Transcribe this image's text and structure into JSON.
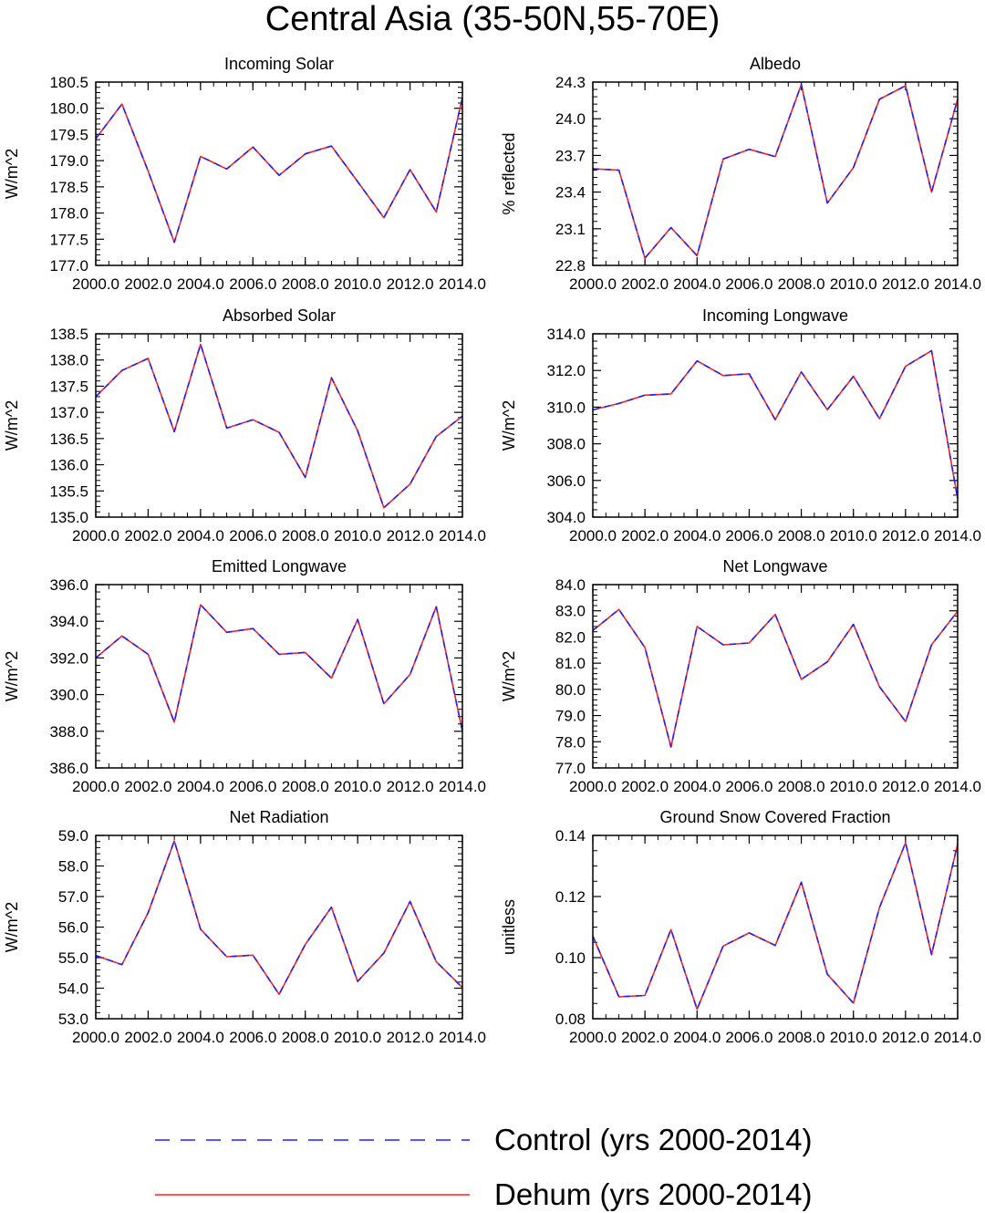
{
  "title": "Central Asia (35-50N,55-70E)",
  "colors": {
    "control": "#2020ff",
    "dehum": "#ff2020"
  },
  "legend": {
    "control_label": "Control (yrs 2000-2014)",
    "dehum_label": "Dehum (yrs 2000-2014)"
  },
  "chart_data": [
    {
      "type": "line",
      "title": "Incoming Solar",
      "ylabel": "W/m^2",
      "xlim": [
        2000,
        2014
      ],
      "ylim": [
        177.0,
        180.5
      ],
      "xticks": [
        "2000.0",
        "2002.0",
        "2004.0",
        "2006.0",
        "2008.0",
        "2010.0",
        "2012.0",
        "2014.0"
      ],
      "yticks": [
        "177.0",
        "177.5",
        "178.0",
        "178.5",
        "179.0",
        "179.5",
        "180.0",
        "180.5"
      ],
      "x": [
        2000,
        2001,
        2002,
        2003,
        2004,
        2005,
        2006,
        2007,
        2008,
        2009,
        2010,
        2011,
        2012,
        2013,
        2014
      ],
      "series": [
        {
          "name": "Control (yrs 2000-2014)",
          "values": [
            179.42,
            180.08,
            178.8,
            177.44,
            179.08,
            178.84,
            179.26,
            178.72,
            179.13,
            179.28,
            178.6,
            177.91,
            178.83,
            178.02,
            180.2
          ]
        },
        {
          "name": "Dehum (yrs 2000-2014)",
          "values": [
            179.42,
            180.08,
            178.8,
            177.44,
            179.08,
            178.84,
            179.26,
            178.72,
            179.13,
            179.28,
            178.6,
            177.91,
            178.83,
            178.02,
            180.2
          ]
        }
      ]
    },
    {
      "type": "line",
      "title": "Albedo",
      "ylabel": "% reflected",
      "xlim": [
        2000,
        2014
      ],
      "ylim": [
        22.8,
        24.3
      ],
      "xticks": [
        "2000.0",
        "2002.0",
        "2004.0",
        "2006.0",
        "2008.0",
        "2010.0",
        "2012.0",
        "2014.0"
      ],
      "yticks": [
        "22.8",
        "23.1",
        "23.4",
        "23.7",
        "24.0",
        "24.3"
      ],
      "x": [
        2000,
        2001,
        2002,
        2003,
        2004,
        2005,
        2006,
        2007,
        2008,
        2009,
        2010,
        2011,
        2012,
        2013,
        2014
      ],
      "series": [
        {
          "name": "Control (yrs 2000-2014)",
          "values": [
            23.59,
            23.58,
            22.86,
            23.11,
            22.88,
            23.67,
            23.75,
            23.69,
            24.28,
            23.31,
            23.6,
            24.16,
            24.27,
            23.4,
            24.16
          ]
        },
        {
          "name": "Dehum (yrs 2000-2014)",
          "values": [
            23.59,
            23.58,
            22.86,
            23.11,
            22.88,
            23.67,
            23.75,
            23.69,
            24.28,
            23.31,
            23.6,
            24.16,
            24.27,
            23.4,
            24.16
          ]
        }
      ]
    },
    {
      "type": "line",
      "title": "Absorbed Solar",
      "ylabel": "W/m^2",
      "xlim": [
        2000,
        2014
      ],
      "ylim": [
        135.0,
        138.5
      ],
      "xticks": [
        "2000.0",
        "2002.0",
        "2004.0",
        "2006.0",
        "2008.0",
        "2010.0",
        "2012.0",
        "2014.0"
      ],
      "yticks": [
        "135.0",
        "135.5",
        "136.0",
        "136.5",
        "137.0",
        "137.5",
        "138.0",
        "138.5"
      ],
      "x": [
        2000,
        2001,
        2002,
        2003,
        2004,
        2005,
        2006,
        2007,
        2008,
        2009,
        2010,
        2011,
        2012,
        2013,
        2014
      ],
      "series": [
        {
          "name": "Control (yrs 2000-2014)",
          "values": [
            137.3,
            137.8,
            138.03,
            136.63,
            138.3,
            136.7,
            136.86,
            136.62,
            135.76,
            137.66,
            136.65,
            135.18,
            135.63,
            136.54,
            136.93
          ]
        },
        {
          "name": "Dehum (yrs 2000-2014)",
          "values": [
            137.3,
            137.8,
            138.03,
            136.63,
            138.3,
            136.7,
            136.86,
            136.62,
            135.76,
            137.66,
            136.65,
            135.18,
            135.63,
            136.54,
            136.93
          ]
        }
      ]
    },
    {
      "type": "line",
      "title": "Incoming Longwave",
      "ylabel": "W/m^2",
      "xlim": [
        2000,
        2014
      ],
      "ylim": [
        304.0,
        314.0
      ],
      "xticks": [
        "2000.0",
        "2002.0",
        "2004.0",
        "2006.0",
        "2008.0",
        "2010.0",
        "2012.0",
        "2014.0"
      ],
      "yticks": [
        "304.0",
        "306.0",
        "308.0",
        "310.0",
        "312.0",
        "314.0"
      ],
      "x": [
        2000,
        2001,
        2002,
        2003,
        2004,
        2005,
        2006,
        2007,
        2008,
        2009,
        2010,
        2011,
        2012,
        2013,
        2014
      ],
      "series": [
        {
          "name": "Control (yrs 2000-2014)",
          "values": [
            309.85,
            310.2,
            310.65,
            310.72,
            312.52,
            311.72,
            311.82,
            309.32,
            311.92,
            309.86,
            311.68,
            309.37,
            312.23,
            313.08,
            305.0
          ]
        },
        {
          "name": "Dehum (yrs 2000-2014)",
          "values": [
            309.85,
            310.2,
            310.65,
            310.72,
            312.52,
            311.72,
            311.82,
            309.32,
            311.92,
            309.86,
            311.68,
            309.37,
            312.23,
            313.08,
            305.0
          ]
        }
      ]
    },
    {
      "type": "line",
      "title": "Emitted Longwave",
      "ylabel": "W/m^2",
      "xlim": [
        2000,
        2014
      ],
      "ylim": [
        386.0,
        396.0
      ],
      "xticks": [
        "2000.0",
        "2002.0",
        "2004.0",
        "2006.0",
        "2008.0",
        "2010.0",
        "2012.0",
        "2014.0"
      ],
      "yticks": [
        "386.0",
        "388.0",
        "390.0",
        "392.0",
        "394.0",
        "396.0"
      ],
      "x": [
        2000,
        2001,
        2002,
        2003,
        2004,
        2005,
        2006,
        2007,
        2008,
        2009,
        2010,
        2011,
        2012,
        2013,
        2014
      ],
      "series": [
        {
          "name": "Control (yrs 2000-2014)",
          "values": [
            392.0,
            393.2,
            392.2,
            388.5,
            394.9,
            393.4,
            393.6,
            392.2,
            392.3,
            390.9,
            394.1,
            389.5,
            391.1,
            394.8,
            388.0
          ]
        },
        {
          "name": "Dehum (yrs 2000-2014)",
          "values": [
            392.0,
            393.2,
            392.2,
            388.5,
            394.9,
            393.4,
            393.6,
            392.2,
            392.3,
            390.9,
            394.1,
            389.5,
            391.1,
            394.8,
            388.0
          ]
        }
      ]
    },
    {
      "type": "line",
      "title": "Net Longwave",
      "ylabel": "W/m^2",
      "xlim": [
        2000,
        2014
      ],
      "ylim": [
        77.0,
        84.0
      ],
      "xticks": [
        "2000.0",
        "2002.0",
        "2004.0",
        "2006.0",
        "2008.0",
        "2010.0",
        "2012.0",
        "2014.0"
      ],
      "yticks": [
        "77.0",
        "78.0",
        "79.0",
        "80.0",
        "81.0",
        "82.0",
        "83.0",
        "84.0"
      ],
      "x": [
        2000,
        2001,
        2002,
        2003,
        2004,
        2005,
        2006,
        2007,
        2008,
        2009,
        2010,
        2011,
        2012,
        2013,
        2014
      ],
      "series": [
        {
          "name": "Control (yrs 2000-2014)",
          "values": [
            82.25,
            83.05,
            81.6,
            77.8,
            82.4,
            81.7,
            81.77,
            82.86,
            80.38,
            81.05,
            82.48,
            80.1,
            78.77,
            81.7,
            82.98
          ]
        },
        {
          "name": "Dehum (yrs 2000-2014)",
          "values": [
            82.25,
            83.05,
            81.6,
            77.8,
            82.4,
            81.7,
            81.77,
            82.86,
            80.38,
            81.05,
            82.48,
            80.1,
            78.77,
            81.7,
            82.98
          ]
        }
      ]
    },
    {
      "type": "line",
      "title": "Net Radiation",
      "ylabel": "W/m^2",
      "xlim": [
        2000,
        2014
      ],
      "ylim": [
        53.0,
        59.0
      ],
      "xticks": [
        "2000.0",
        "2002.0",
        "2004.0",
        "2006.0",
        "2008.0",
        "2010.0",
        "2012.0",
        "2014.0"
      ],
      "yticks": [
        "53.0",
        "54.0",
        "55.0",
        "56.0",
        "57.0",
        "58.0",
        "59.0"
      ],
      "x": [
        2000,
        2001,
        2002,
        2003,
        2004,
        2005,
        2006,
        2007,
        2008,
        2009,
        2010,
        2011,
        2012,
        2013,
        2014
      ],
      "series": [
        {
          "name": "Control (yrs 2000-2014)",
          "values": [
            55.07,
            54.77,
            56.47,
            58.82,
            55.93,
            55.03,
            55.08,
            53.8,
            55.43,
            56.65,
            54.22,
            55.15,
            56.84,
            54.87,
            54.02
          ]
        },
        {
          "name": "Dehum (yrs 2000-2014)",
          "values": [
            55.07,
            54.77,
            56.47,
            58.82,
            55.93,
            55.03,
            55.08,
            53.8,
            55.43,
            56.65,
            54.22,
            55.15,
            56.84,
            54.87,
            54.02
          ]
        }
      ]
    },
    {
      "type": "line",
      "title": "Ground Snow Covered Fraction",
      "ylabel": "unitless",
      "xlim": [
        2000,
        2014
      ],
      "ylim": [
        0.08,
        0.14
      ],
      "xticks": [
        "2000.0",
        "2002.0",
        "2004.0",
        "2006.0",
        "2008.0",
        "2010.0",
        "2012.0",
        "2014.0"
      ],
      "yticks": [
        "0.08",
        "0.10",
        "0.12",
        "0.14"
      ],
      "x": [
        2000,
        2001,
        2002,
        2003,
        2004,
        2005,
        2006,
        2007,
        2008,
        2009,
        2010,
        2011,
        2012,
        2013,
        2014
      ],
      "series": [
        {
          "name": "Control (yrs 2000-2014)",
          "values": [
            0.107,
            0.0872,
            0.0876,
            0.1092,
            0.0831,
            0.1038,
            0.1081,
            0.104,
            0.1247,
            0.0946,
            0.0851,
            0.1164,
            0.1376,
            0.101,
            0.1372
          ]
        },
        {
          "name": "Dehum (yrs 2000-2014)",
          "values": [
            0.107,
            0.0872,
            0.0876,
            0.1092,
            0.0831,
            0.1038,
            0.1081,
            0.104,
            0.1247,
            0.0946,
            0.0851,
            0.1164,
            0.1376,
            0.101,
            0.1372
          ]
        }
      ]
    }
  ]
}
